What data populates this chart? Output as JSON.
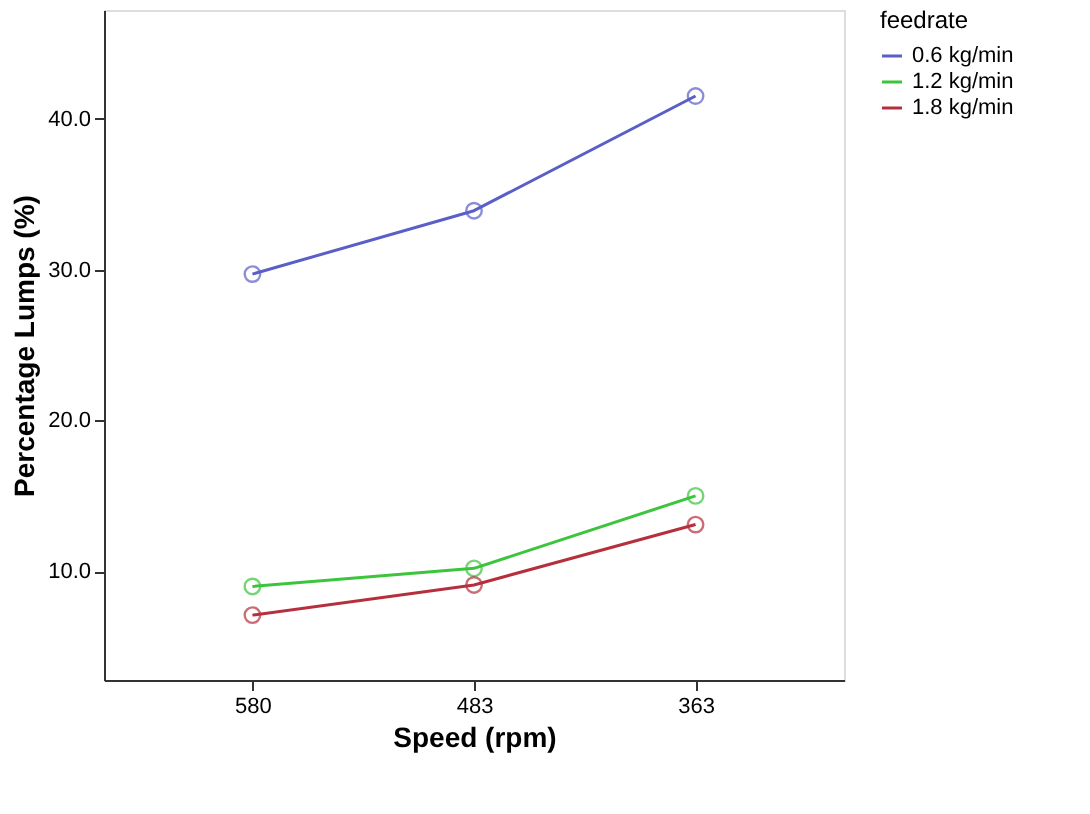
{
  "chart_data": {
    "type": "line",
    "xlabel": "Speed (rpm)",
    "ylabel": "Percentage Lumps (%)",
    "legend_title": "feedrate",
    "categories": [
      "580",
      "483",
      "363"
    ],
    "series": [
      {
        "name": "0.6 kg/min",
        "color": "#5a5fc8",
        "values": [
          29.7,
          33.9,
          41.5
        ]
      },
      {
        "name": "1.2 kg/min",
        "color": "#3cc43c",
        "values": [
          9.0,
          10.2,
          15.0
        ]
      },
      {
        "name": "1.8 kg/min",
        "color": "#b5303c",
        "values": [
          7.1,
          9.1,
          13.1
        ]
      }
    ],
    "ylim": [
      2.8,
      47.2
    ],
    "yticks": [
      {
        "value": 10,
        "label": "10.0"
      },
      {
        "value": 20,
        "label": "20.0"
      },
      {
        "value": 30,
        "label": "30.0"
      },
      {
        "value": 40,
        "label": "40.0"
      }
    ],
    "grid": false,
    "legend": "top right",
    "marker": "circle",
    "line_style": "solid"
  }
}
